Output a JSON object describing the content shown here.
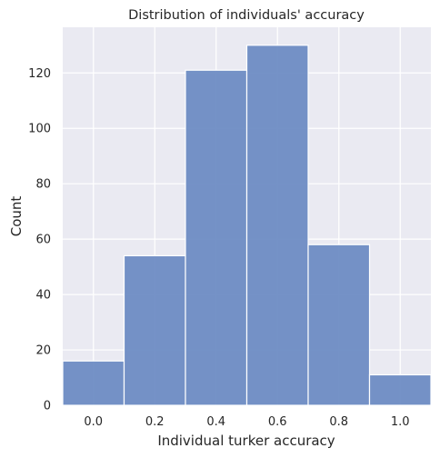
{
  "chart_data": {
    "type": "bar",
    "title": "Distribution of individuals' accuracy",
    "xlabel": "Individual turker accuracy",
    "ylabel": "Count",
    "bin_edges": [
      -0.1,
      0.1,
      0.3,
      0.5,
      0.7,
      0.9,
      1.1
    ],
    "values": [
      16,
      54,
      121,
      130,
      58,
      11
    ],
    "xlim": [
      -0.1,
      1.1
    ],
    "ylim": [
      0,
      136.5
    ],
    "xticks": [
      0.0,
      0.2,
      0.4,
      0.6,
      0.8,
      1.0
    ],
    "xtick_labels": [
      "0.0",
      "0.2",
      "0.4",
      "0.6",
      "0.8",
      "1.0"
    ],
    "yticks": [
      0,
      20,
      40,
      60,
      80,
      100,
      120
    ],
    "ytick_labels": [
      "0",
      "20",
      "40",
      "60",
      "80",
      "100",
      "120"
    ],
    "grid": true,
    "bar_color": "#6a8ac3",
    "background_color": "#eaeaf2"
  }
}
